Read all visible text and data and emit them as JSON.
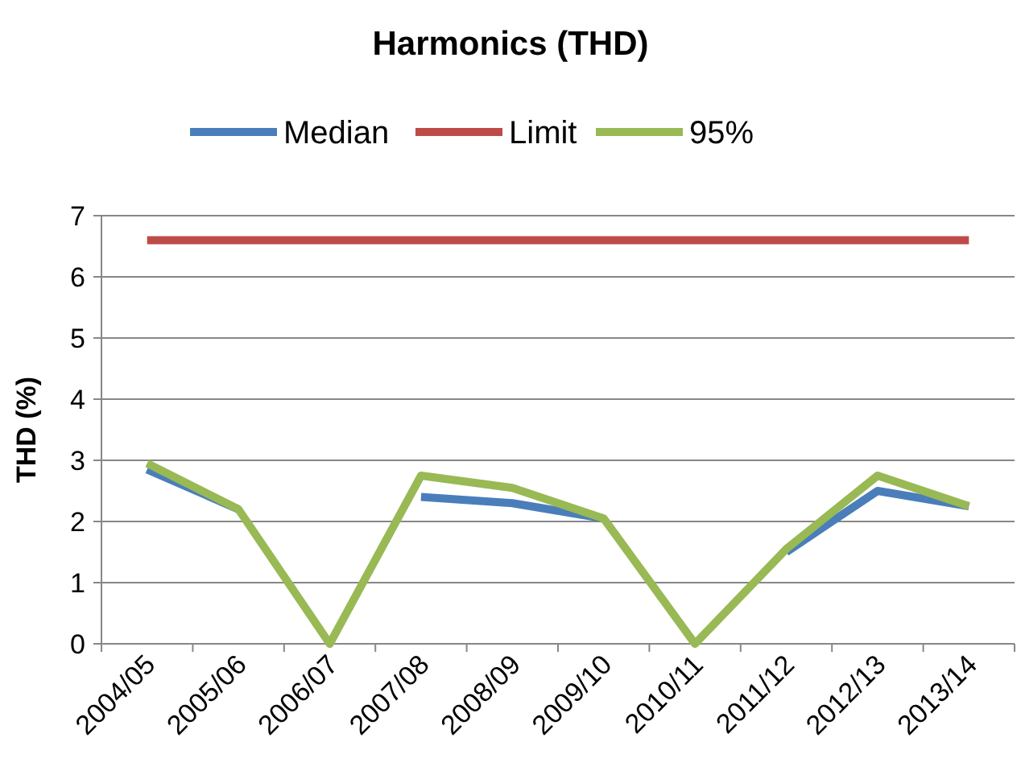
{
  "chart_data": {
    "type": "line",
    "title": "Harmonics (THD)",
    "ylabel": "THD (%)",
    "categories": [
      "2004/05",
      "2005/06",
      "2006/07",
      "2007/08",
      "2008/09",
      "2009/10",
      "2010/11",
      "2011/12",
      "2012/13",
      "2013/14"
    ],
    "series": [
      {
        "name": "Median",
        "color": "#4a7ebb",
        "values": [
          2.85,
          2.2,
          null,
          2.4,
          2.3,
          2.05,
          null,
          1.5,
          2.5,
          2.25
        ]
      },
      {
        "name": "Limit",
        "color": "#be4b48",
        "values": [
          6.6,
          6.6,
          6.6,
          6.6,
          6.6,
          6.6,
          6.6,
          6.6,
          6.6,
          6.6
        ]
      },
      {
        "name": "95%",
        "color": "#98b954",
        "values": [
          2.95,
          2.2,
          0,
          2.75,
          2.55,
          2.05,
          0,
          1.55,
          2.75,
          2.25
        ]
      }
    ],
    "ylim": [
      0,
      7
    ],
    "yticks": [
      0,
      1,
      2,
      3,
      4,
      5,
      6,
      7
    ],
    "grid": "y",
    "legend": "top",
    "marker": "none",
    "line_style": "solid"
  }
}
